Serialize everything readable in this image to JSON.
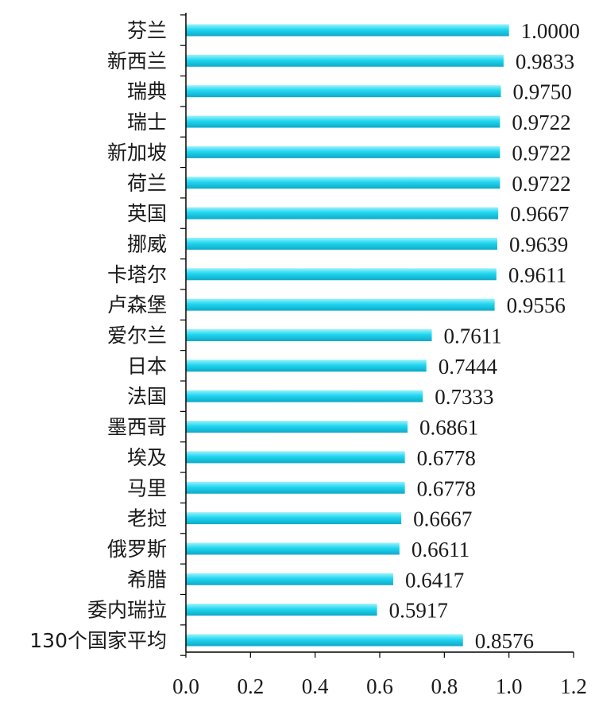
{
  "chart_data": {
    "type": "bar",
    "orientation": "horizontal",
    "title": "",
    "xlabel": "",
    "ylabel": "",
    "categories": [
      "芬兰",
      "新西兰",
      "瑞典",
      "瑞士",
      "新加坡",
      "荷兰",
      "英国",
      "挪威",
      "卡塔尔",
      "卢森堡",
      "爱尔兰",
      "日本",
      "法国",
      "墨西哥",
      "埃及",
      "马里",
      "老挝",
      "俄罗斯",
      "希腊",
      "委内瑞拉",
      "130个国家平均"
    ],
    "values": [
      1.0,
      0.9833,
      0.975,
      0.9722,
      0.9722,
      0.9722,
      0.9667,
      0.9639,
      0.9611,
      0.9556,
      0.7611,
      0.7444,
      0.7333,
      0.6861,
      0.6778,
      0.6778,
      0.6667,
      0.6611,
      0.6417,
      0.5917,
      0.8576
    ],
    "value_labels": [
      "1.0000",
      "0.9833",
      "0.9750",
      "0.9722",
      "0.9722",
      "0.9722",
      "0.9667",
      "0.9639",
      "0.9611",
      "0.9556",
      "0.7611",
      "0.7444",
      "0.7333",
      "0.6861",
      "0.6778",
      "0.6778",
      "0.6667",
      "0.6611",
      "0.6417",
      "0.5917",
      "0.8576"
    ],
    "xlim": [
      0.0,
      1.2
    ],
    "x_ticks": [
      "0.0",
      "0.2",
      "0.4",
      "0.6",
      "0.8",
      "1.0",
      "1.2"
    ],
    "grid": false,
    "legend": "none",
    "colors": {
      "bar_top": "#9cf2fb",
      "bar_mid": "#20d6f0",
      "bar_bottom": "#0fa9c8",
      "axis": "#000000"
    }
  }
}
